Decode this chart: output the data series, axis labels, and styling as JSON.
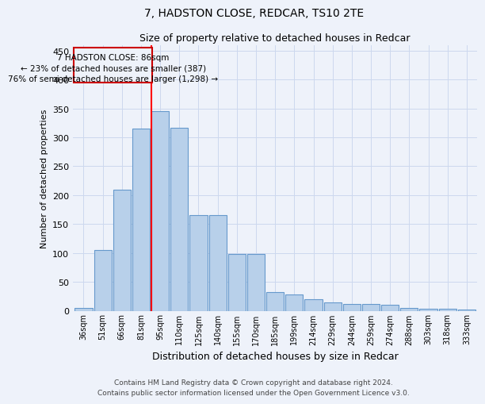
{
  "title": "7, HADSTON CLOSE, REDCAR, TS10 2TE",
  "subtitle": "Size of property relative to detached houses in Redcar",
  "xlabel": "Distribution of detached houses by size in Redcar",
  "ylabel": "Number of detached properties",
  "footer_line1": "Contains HM Land Registry data © Crown copyright and database right 2024.",
  "footer_line2": "Contains public sector information licensed under the Open Government Licence v3.0.",
  "bar_labels": [
    "36sqm",
    "51sqm",
    "66sqm",
    "81sqm",
    "95sqm",
    "110sqm",
    "125sqm",
    "140sqm",
    "155sqm",
    "170sqm",
    "185sqm",
    "199sqm",
    "214sqm",
    "229sqm",
    "244sqm",
    "259sqm",
    "274sqm",
    "288sqm",
    "303sqm",
    "318sqm",
    "333sqm"
  ],
  "bar_values": [
    5,
    105,
    210,
    315,
    345,
    316,
    165,
    165,
    98,
    98,
    32,
    28,
    20,
    15,
    12,
    12,
    10,
    5,
    3,
    3,
    2
  ],
  "bar_color": "#b8d0ea",
  "bar_edgecolor": "#6699cc",
  "annotation_text_line1": "7 HADSTON CLOSE: 86sqm",
  "annotation_text_line2": "← 23% of detached houses are smaller (387)",
  "annotation_text_line3": "76% of semi-detached houses are larger (1,298) →",
  "annotation_box_color": "#cc0000",
  "ylim": [
    0,
    460
  ],
  "yticks": [
    0,
    50,
    100,
    150,
    200,
    250,
    300,
    350,
    400,
    450
  ],
  "grid_color": "#ccd8ee",
  "background_color": "#eef2fa"
}
